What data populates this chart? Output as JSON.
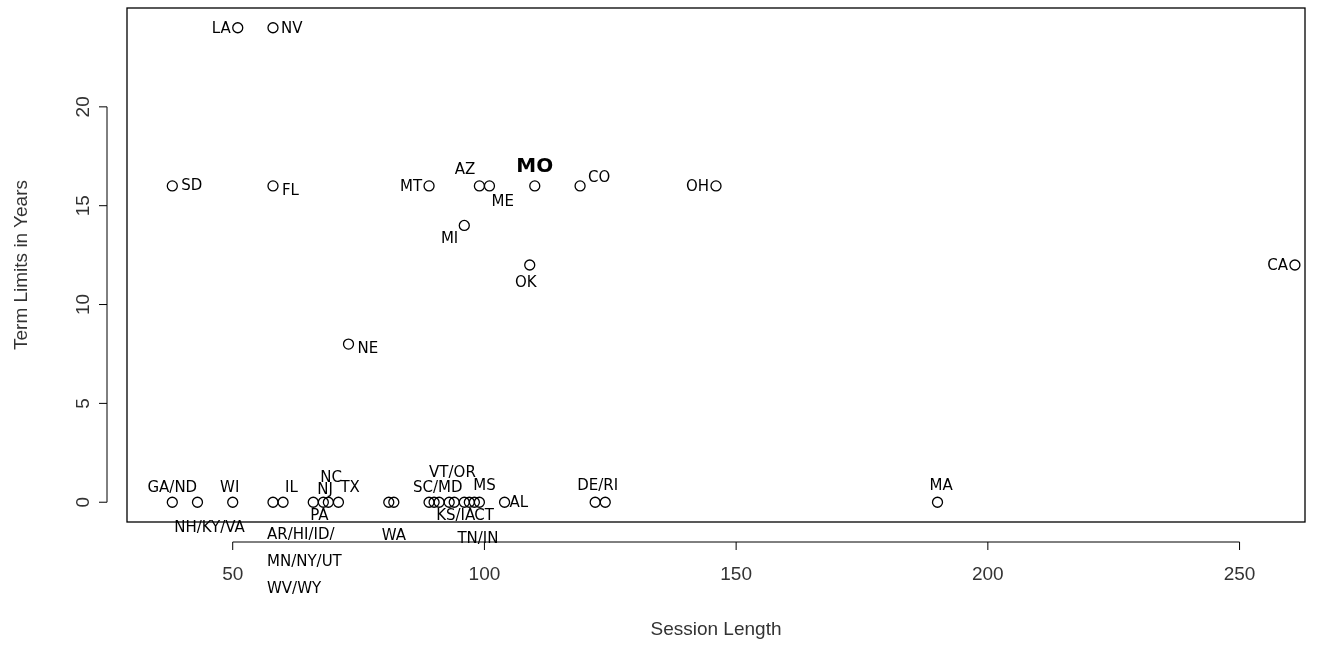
{
  "chart_data": {
    "type": "scatter",
    "xlabel": "Session Length",
    "ylabel": "Term Limits in Years",
    "xlim": [
      29,
      263
    ],
    "ylim": [
      -1,
      25
    ],
    "xticks": [
      50,
      100,
      150,
      200,
      250
    ],
    "yticks": [
      0,
      5,
      10,
      15,
      20
    ],
    "grid": false,
    "marker": "circle",
    "series": [
      {
        "color": "#000000",
        "x": [
          51,
          58,
          38,
          58,
          89,
          99,
          101,
          110,
          119,
          146,
          96,
          109,
          73,
          261,
          38,
          43,
          50,
          58,
          60,
          66,
          68,
          69,
          71,
          81,
          82,
          89,
          90,
          91,
          93,
          94,
          96,
          97,
          98,
          99,
          104,
          122,
          124,
          190
        ],
        "values": [
          24,
          24,
          16,
          16,
          16,
          16,
          16,
          16,
          16,
          16,
          14,
          12,
          8,
          12,
          0,
          0,
          0,
          0,
          0,
          0,
          0,
          0,
          0,
          0,
          0,
          0,
          0,
          0,
          0,
          0,
          0,
          0,
          0,
          0,
          0,
          0,
          0,
          0
        ]
      }
    ],
    "annotations": [
      {
        "text": "LA",
        "x": 51,
        "y": 24
      },
      {
        "text": "NV",
        "x": 58,
        "y": 24
      },
      {
        "text": "SD",
        "x": 38,
        "y": 16
      },
      {
        "text": "FL",
        "x": 58,
        "y": 16
      },
      {
        "text": "MT",
        "x": 89,
        "y": 16
      },
      {
        "text": "AZ",
        "x": 99,
        "y": 16
      },
      {
        "text": "ME",
        "x": 101,
        "y": 16
      },
      {
        "text": "MO",
        "x": 110,
        "y": 16
      },
      {
        "text": "CO",
        "x": 119,
        "y": 16
      },
      {
        "text": "OH",
        "x": 146,
        "y": 16
      },
      {
        "text": "MI",
        "x": 96,
        "y": 14
      },
      {
        "text": "OK",
        "x": 109,
        "y": 12
      },
      {
        "text": "NE",
        "x": 73,
        "y": 8
      },
      {
        "text": "CA",
        "x": 261,
        "y": 12
      },
      {
        "text": "GA/ND",
        "x": 38,
        "y": 0
      },
      {
        "text": "NH/KY/VA",
        "x": 43,
        "y": 0
      },
      {
        "text": "WI",
        "x": 50,
        "y": 0
      },
      {
        "text": "AR/HI/ID/\nMN/NY/UT\nWV/WY",
        "x": 58,
        "y": 0
      },
      {
        "text": "IL",
        "x": 60,
        "y": 0
      },
      {
        "text": "PA",
        "x": 66,
        "y": 0
      },
      {
        "text": "NJ",
        "x": 68,
        "y": 0
      },
      {
        "text": "NC",
        "x": 69,
        "y": 0
      },
      {
        "text": "TX",
        "x": 71,
        "y": 0
      },
      {
        "text": "WA",
        "x": 82,
        "y": 0
      },
      {
        "text": "SC/MD",
        "x": 89,
        "y": 0
      },
      {
        "text": "VT/OR",
        "x": 91,
        "y": 0
      },
      {
        "text": "KS/IA",
        "x": 93,
        "y": 0
      },
      {
        "text": "MS",
        "x": 97,
        "y": 0
      },
      {
        "text": "CT",
        "x": 98,
        "y": 0
      },
      {
        "text": "TN/IN",
        "x": 99,
        "y": 0
      },
      {
        "text": "AL",
        "x": 104,
        "y": 0
      },
      {
        "text": "DE/RI",
        "x": 122,
        "y": 0
      },
      {
        "text": "MA",
        "x": 190,
        "y": 0
      }
    ]
  }
}
